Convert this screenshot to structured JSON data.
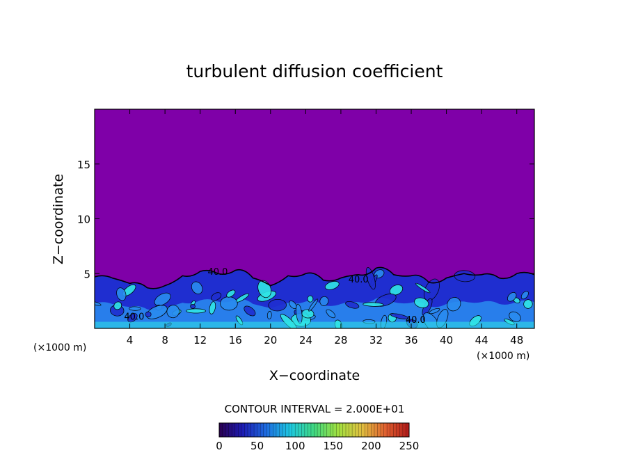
{
  "chart_data": {
    "type": "heatmap",
    "title": "turbulent diffusion coefficient",
    "xlabel": "X−coordinate",
    "ylabel": "Z−coordinate",
    "x_unit": "(×1000 m)",
    "x_unit_right": "(×1000 m)",
    "xlim": [
      0,
      50
    ],
    "ylim": [
      0,
      20
    ],
    "x_ticks": [
      4,
      8,
      12,
      16,
      20,
      24,
      28,
      32,
      36,
      40,
      44,
      48
    ],
    "y_ticks": [
      5,
      10,
      15
    ],
    "contour_interval_text": "CONTOUR INTERVAL = 2.000E+01",
    "contour_interval": 20,
    "contour_labels": [
      {
        "text": "40.0",
        "x": 14.0,
        "z": 4.9
      },
      {
        "text": "40.0",
        "x": 30.0,
        "z": 4.2
      },
      {
        "text": "40.0",
        "x": 36.5,
        "z": 0.5
      },
      {
        "text": "40.0",
        "x": 4.5,
        "z": 0.8
      }
    ],
    "boundary_layer_top": [
      [
        0,
        4.7
      ],
      [
        2,
        4.6
      ],
      [
        4,
        4.1
      ],
      [
        6,
        3.7
      ],
      [
        8,
        3.9
      ],
      [
        10,
        4.8
      ],
      [
        12,
        5.2
      ],
      [
        14,
        5.0
      ],
      [
        16,
        5.3
      ],
      [
        18,
        4.6
      ],
      [
        20,
        3.9
      ],
      [
        22,
        4.8
      ],
      [
        24,
        5.0
      ],
      [
        26,
        4.4
      ],
      [
        28,
        4.6
      ],
      [
        30,
        4.9
      ],
      [
        32,
        5.5
      ],
      [
        34,
        4.9
      ],
      [
        36,
        4.8
      ],
      [
        38,
        4.2
      ],
      [
        40,
        4.6
      ],
      [
        42,
        5.0
      ],
      [
        44,
        4.9
      ],
      [
        46,
        4.6
      ],
      [
        48,
        5.0
      ],
      [
        50,
        4.9
      ]
    ],
    "background_value": 0,
    "colorbar": {
      "ticks": [
        "0",
        "50",
        "100",
        "150",
        "200",
        "250"
      ],
      "range": [
        0,
        250
      ],
      "colors": [
        "#2a0050",
        "#1c1cb4",
        "#1e6ee0",
        "#1ec8e0",
        "#40d880",
        "#a0e040",
        "#e0c040",
        "#e06030",
        "#b01818"
      ]
    },
    "colors": {
      "background": "#7f00a8",
      "low": "#1f2ed0",
      "mid": "#2a8cf0",
      "high": "#30e6e6",
      "contour": "#000000"
    }
  }
}
